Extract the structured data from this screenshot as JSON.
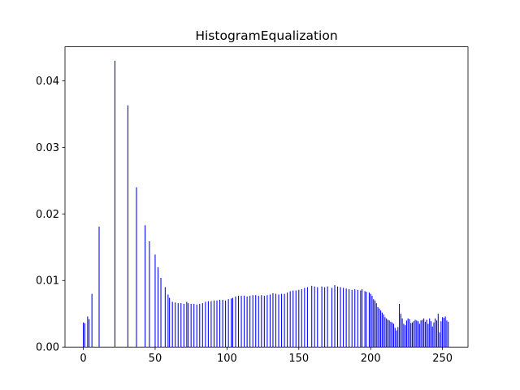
{
  "chart_data": {
    "type": "bar",
    "title": "HistogramEqualization",
    "xlabel": "",
    "ylabel": "",
    "xlim": [
      -12.75,
      267.75
    ],
    "ylim": [
      0,
      0.0451
    ],
    "xticks": [
      0,
      50,
      100,
      150,
      200,
      250
    ],
    "xtick_labels": [
      "0",
      "50",
      "100",
      "150",
      "200",
      "250"
    ],
    "yticks": [
      0,
      0.01,
      0.02,
      0.03,
      0.04
    ],
    "ytick_labels": [
      "0.00",
      "0.01",
      "0.02",
      "0.03",
      "0.04"
    ],
    "grid": false,
    "legend": "none",
    "bar_color": "#0000ff",
    "series": [
      {
        "x": [
          0,
          1,
          3,
          4,
          6,
          11,
          22,
          31,
          37,
          43,
          46,
          50,
          52,
          54,
          57,
          59,
          60,
          62,
          64,
          66,
          68,
          70,
          72,
          73,
          75,
          77,
          79,
          81,
          83,
          85,
          87,
          89,
          91,
          93,
          95,
          97,
          99,
          101,
          103,
          104,
          106,
          108,
          110,
          112,
          114,
          116,
          118,
          120,
          122,
          124,
          126,
          128,
          130,
          132,
          134,
          136,
          138,
          140,
          142,
          144,
          146,
          148,
          150,
          152,
          154,
          156,
          159,
          161,
          163,
          166,
          168,
          170,
          173,
          175,
          177,
          179,
          181,
          183,
          185,
          187,
          189,
          191,
          193,
          194,
          196,
          197,
          199,
          200,
          201,
          202,
          203,
          204,
          205,
          206,
          207,
          208,
          209,
          210,
          211,
          212,
          213,
          214,
          215,
          216,
          217,
          218,
          219,
          220,
          221,
          222,
          223,
          224,
          225,
          226,
          227,
          228,
          229,
          230,
          231,
          232,
          233,
          234,
          235,
          236,
          237,
          238,
          239,
          240,
          241,
          242,
          243,
          244,
          245,
          246,
          247,
          248,
          249,
          250,
          251,
          252,
          253,
          254
        ],
        "y": [
          0.0037,
          0.0036,
          0.0046,
          0.0042,
          0.008,
          0.0181,
          0.043,
          0.0363,
          0.024,
          0.0183,
          0.0159,
          0.0139,
          0.012,
          0.0104,
          0.009,
          0.0079,
          0.0074,
          0.0068,
          0.0067,
          0.0066,
          0.0066,
          0.0065,
          0.0068,
          0.0066,
          0.0065,
          0.0065,
          0.0064,
          0.0065,
          0.0066,
          0.0068,
          0.0069,
          0.0069,
          0.007,
          0.007,
          0.0071,
          0.0071,
          0.007,
          0.0072,
          0.0073,
          0.0074,
          0.0076,
          0.0077,
          0.0077,
          0.0077,
          0.0076,
          0.0077,
          0.0078,
          0.0078,
          0.0077,
          0.0078,
          0.0077,
          0.0078,
          0.0079,
          0.0081,
          0.008,
          0.0079,
          0.008,
          0.008,
          0.0082,
          0.0084,
          0.0085,
          0.0085,
          0.0086,
          0.0087,
          0.0089,
          0.009,
          0.0092,
          0.0091,
          0.009,
          0.0091,
          0.009,
          0.0091,
          0.0089,
          0.0093,
          0.0091,
          0.009,
          0.0089,
          0.0088,
          0.0087,
          0.0086,
          0.0087,
          0.0086,
          0.0085,
          0.0087,
          0.0084,
          0.0083,
          0.0082,
          0.008,
          0.0077,
          0.0072,
          0.007,
          0.0066,
          0.006,
          0.0058,
          0.0055,
          0.0052,
          0.0049,
          0.0045,
          0.0043,
          0.0041,
          0.004,
          0.0038,
          0.0037,
          0.0035,
          0.0029,
          0.0025,
          0.003,
          0.0065,
          0.005,
          0.0043,
          0.0035,
          0.0033,
          0.004,
          0.0043,
          0.0042,
          0.0036,
          0.0037,
          0.0039,
          0.0041,
          0.004,
          0.0039,
          0.0035,
          0.004,
          0.0041,
          0.0043,
          0.0038,
          0.0041,
          0.0035,
          0.0043,
          0.0039,
          0.0031,
          0.0037,
          0.0043,
          0.004,
          0.005,
          0.0022,
          0.0039,
          0.0045,
          0.0044,
          0.0046,
          0.004,
          0.0038
        ]
      }
    ]
  }
}
